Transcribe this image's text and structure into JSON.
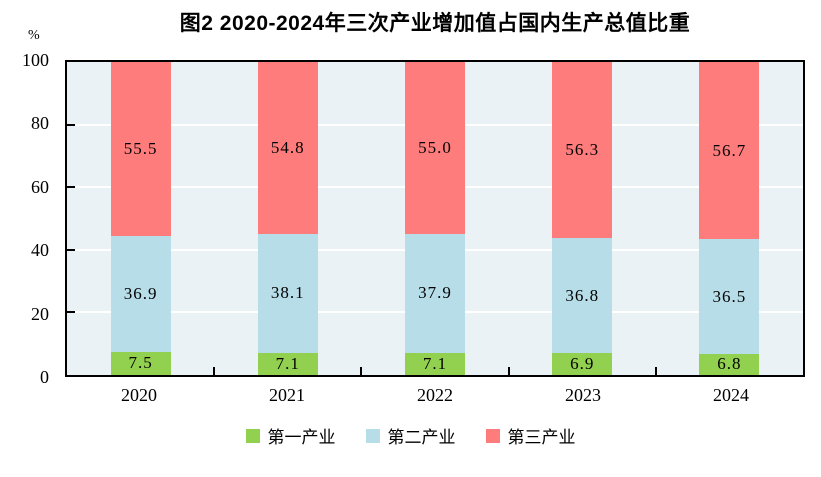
{
  "chart": {
    "title": "图2  2020-2024年三次产业增加值占国内生产总值比重",
    "y_unit_label": "%"
  },
  "chart_data": {
    "type": "bar",
    "stacked": true,
    "title": "图2  2020-2024年三次产业增加值占国内生产总值比重",
    "xlabel": "",
    "ylabel": "%",
    "ylim": [
      0,
      100
    ],
    "yticks": [
      0,
      20,
      40,
      60,
      80,
      100
    ],
    "ytick_labels": [
      "0",
      "20",
      "40",
      "60",
      "80",
      "100"
    ],
    "categories": [
      "2020",
      "2021",
      "2022",
      "2023",
      "2024"
    ],
    "series": [
      {
        "name": "第一产业",
        "color": "#92D050",
        "values": [
          7.5,
          7.1,
          7.1,
          6.9,
          6.8
        ],
        "labels": [
          "7.5",
          "7.1",
          "7.1",
          "6.9",
          "6.8"
        ]
      },
      {
        "name": "第二产业",
        "color": "#B7DEE8",
        "values": [
          36.9,
          38.1,
          37.9,
          36.8,
          36.5
        ],
        "labels": [
          "36.9",
          "38.1",
          "37.9",
          "36.8",
          "36.5"
        ]
      },
      {
        "name": "第三产业",
        "color": "#FF7C7C",
        "values": [
          55.5,
          54.8,
          55.0,
          56.3,
          56.7
        ],
        "labels": [
          "55.5",
          "54.8",
          "55.0",
          "56.3",
          "56.7"
        ]
      }
    ],
    "grid": true,
    "gridline_color": "#FFFFFF",
    "plot_bg": "#EAF2F6",
    "axis_color": "#000000",
    "legend_position": "bottom"
  }
}
